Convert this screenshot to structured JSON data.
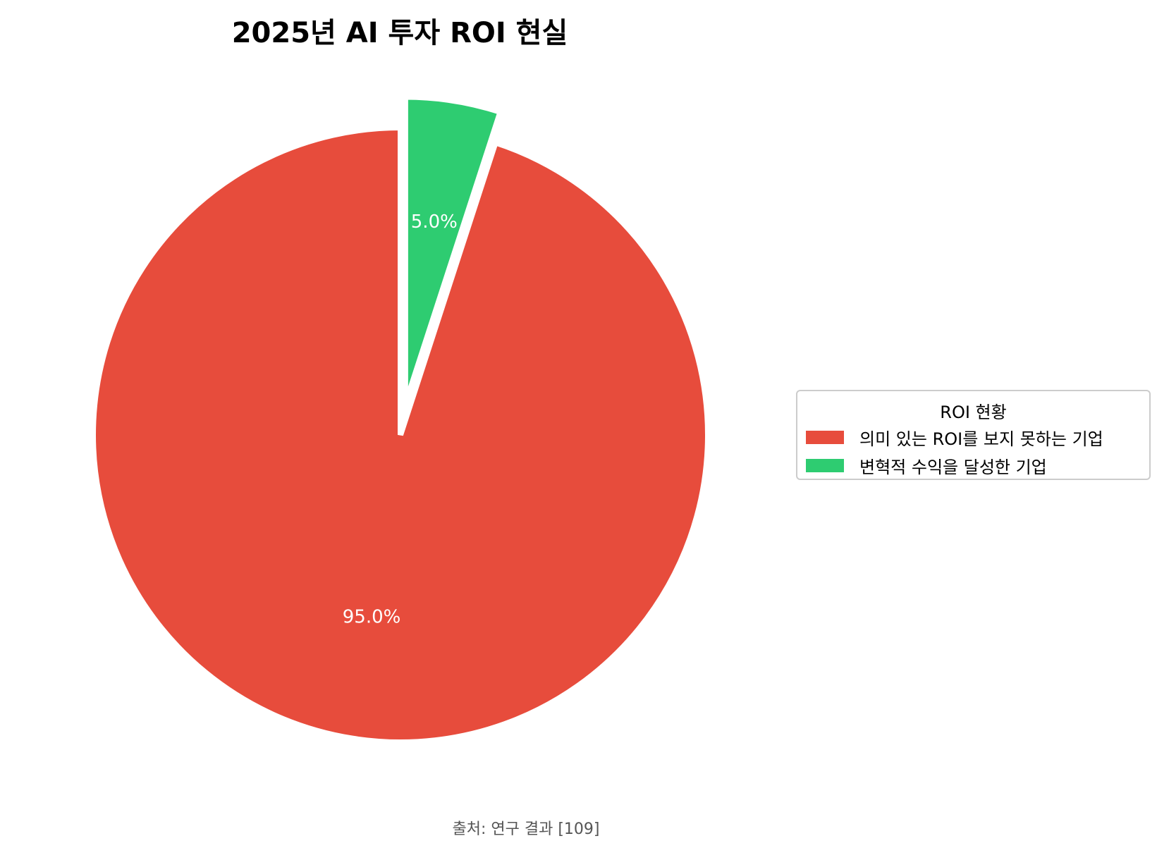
{
  "chart_data": {
    "type": "pie",
    "title": "2025년 AI 투자 ROI 현실",
    "categories": [
      "의미 있는 ROI를 보지 못하는 기업",
      "변혁적 수익을 달성한 기업"
    ],
    "values": [
      95.0,
      5.0
    ],
    "value_labels": [
      "95.0%",
      "5.0%"
    ],
    "colors": [
      "#e74c3c",
      "#2ecc71"
    ],
    "exploded": [
      false,
      true
    ],
    "start_angle": "90deg, counterclockwise",
    "legend": {
      "title": "ROI 현황",
      "placement": "right"
    },
    "source_note": "출처: 연구 결과 [109]"
  }
}
